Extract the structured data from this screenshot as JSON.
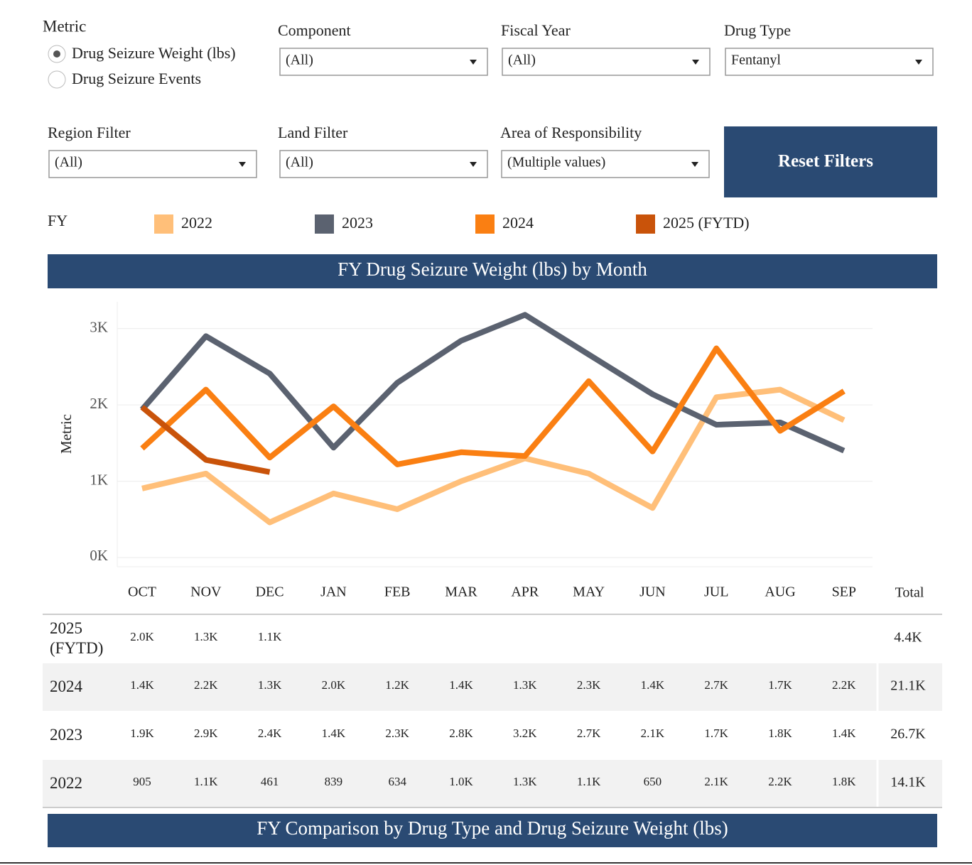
{
  "metric": {
    "label": "Metric",
    "options": [
      "Drug Seizure Weight (lbs)",
      "Drug Seizure Events"
    ]
  },
  "filters": [
    {
      "label": "Component",
      "value": "(All)"
    },
    {
      "label": "Fiscal Year",
      "value": "(All)"
    },
    {
      "label": "Drug Type",
      "value": "Fentanyl"
    },
    {
      "label": "Region Filter",
      "value": "(All)"
    },
    {
      "label": "Land Filter",
      "value": "(All)"
    },
    {
      "label": "Area of Responsibility",
      "value": "(Multiple values)"
    }
  ],
  "reset_button": "Reset Filters",
  "legend_title": "FY",
  "chart_data": {
    "type": "line",
    "title": "FY Drug Seizure Weight (lbs) by Month",
    "ylabel": "Metric",
    "categories": [
      "OCT",
      "NOV",
      "DEC",
      "JAN",
      "FEB",
      "MAR",
      "APR",
      "MAY",
      "JUN",
      "JUL",
      "AUG",
      "SEP"
    ],
    "ylim": [
      -120,
      3350
    ],
    "yticks": [
      {
        "value": 0,
        "label": "0K"
      },
      {
        "value": 1000,
        "label": "1K"
      },
      {
        "value": 2000,
        "label": "2K"
      },
      {
        "value": 3000,
        "label": "3K"
      }
    ],
    "grid": true,
    "total_header": "Total",
    "series": [
      {
        "name": "2022",
        "color": "#ffbf79",
        "values": [
          905,
          1100,
          461,
          839,
          634,
          1000,
          1300,
          1100,
          650,
          2100,
          2200,
          1800
        ],
        "value_labels": [
          "905",
          "1.1K",
          "461",
          "839",
          "634",
          "1.0K",
          "1.3K",
          "1.1K",
          "650",
          "2.1K",
          "2.2K",
          "1.8K"
        ],
        "total_label": "14.1K"
      },
      {
        "name": "2023",
        "color": "#5b6270",
        "values": [
          1940,
          2900,
          2410,
          1440,
          2290,
          2840,
          3180,
          2660,
          2140,
          1740,
          1770,
          1400
        ],
        "value_labels": [
          "1.9K",
          "2.9K",
          "2.4K",
          "1.4K",
          "2.3K",
          "2.8K",
          "3.2K",
          "2.7K",
          "2.1K",
          "1.7K",
          "1.8K",
          "1.4K"
        ],
        "total_label": "26.7K"
      },
      {
        "name": "2024",
        "color": "#fa7f12",
        "values": [
          1430,
          2200,
          1310,
          1980,
          1220,
          1380,
          1330,
          2310,
          1390,
          2740,
          1660,
          2180
        ],
        "value_labels": [
          "1.4K",
          "2.2K",
          "1.3K",
          "2.0K",
          "1.2K",
          "1.4K",
          "1.3K",
          "2.3K",
          "1.4K",
          "2.7K",
          "1.7K",
          "2.2K"
        ],
        "total_label": "21.1K"
      },
      {
        "name": "2025 (FYTD)",
        "color": "#c9530a",
        "values": [
          1970,
          1280,
          1120,
          null,
          null,
          null,
          null,
          null,
          null,
          null,
          null,
          null
        ],
        "value_labels": [
          "2.0K",
          "1.3K",
          "1.1K",
          null,
          null,
          null,
          null,
          null,
          null,
          null,
          null,
          null
        ],
        "total_label": "4.4K"
      }
    ]
  },
  "section_title": "FY Comparison by Drug Type and Drug Seizure Weight (lbs)"
}
